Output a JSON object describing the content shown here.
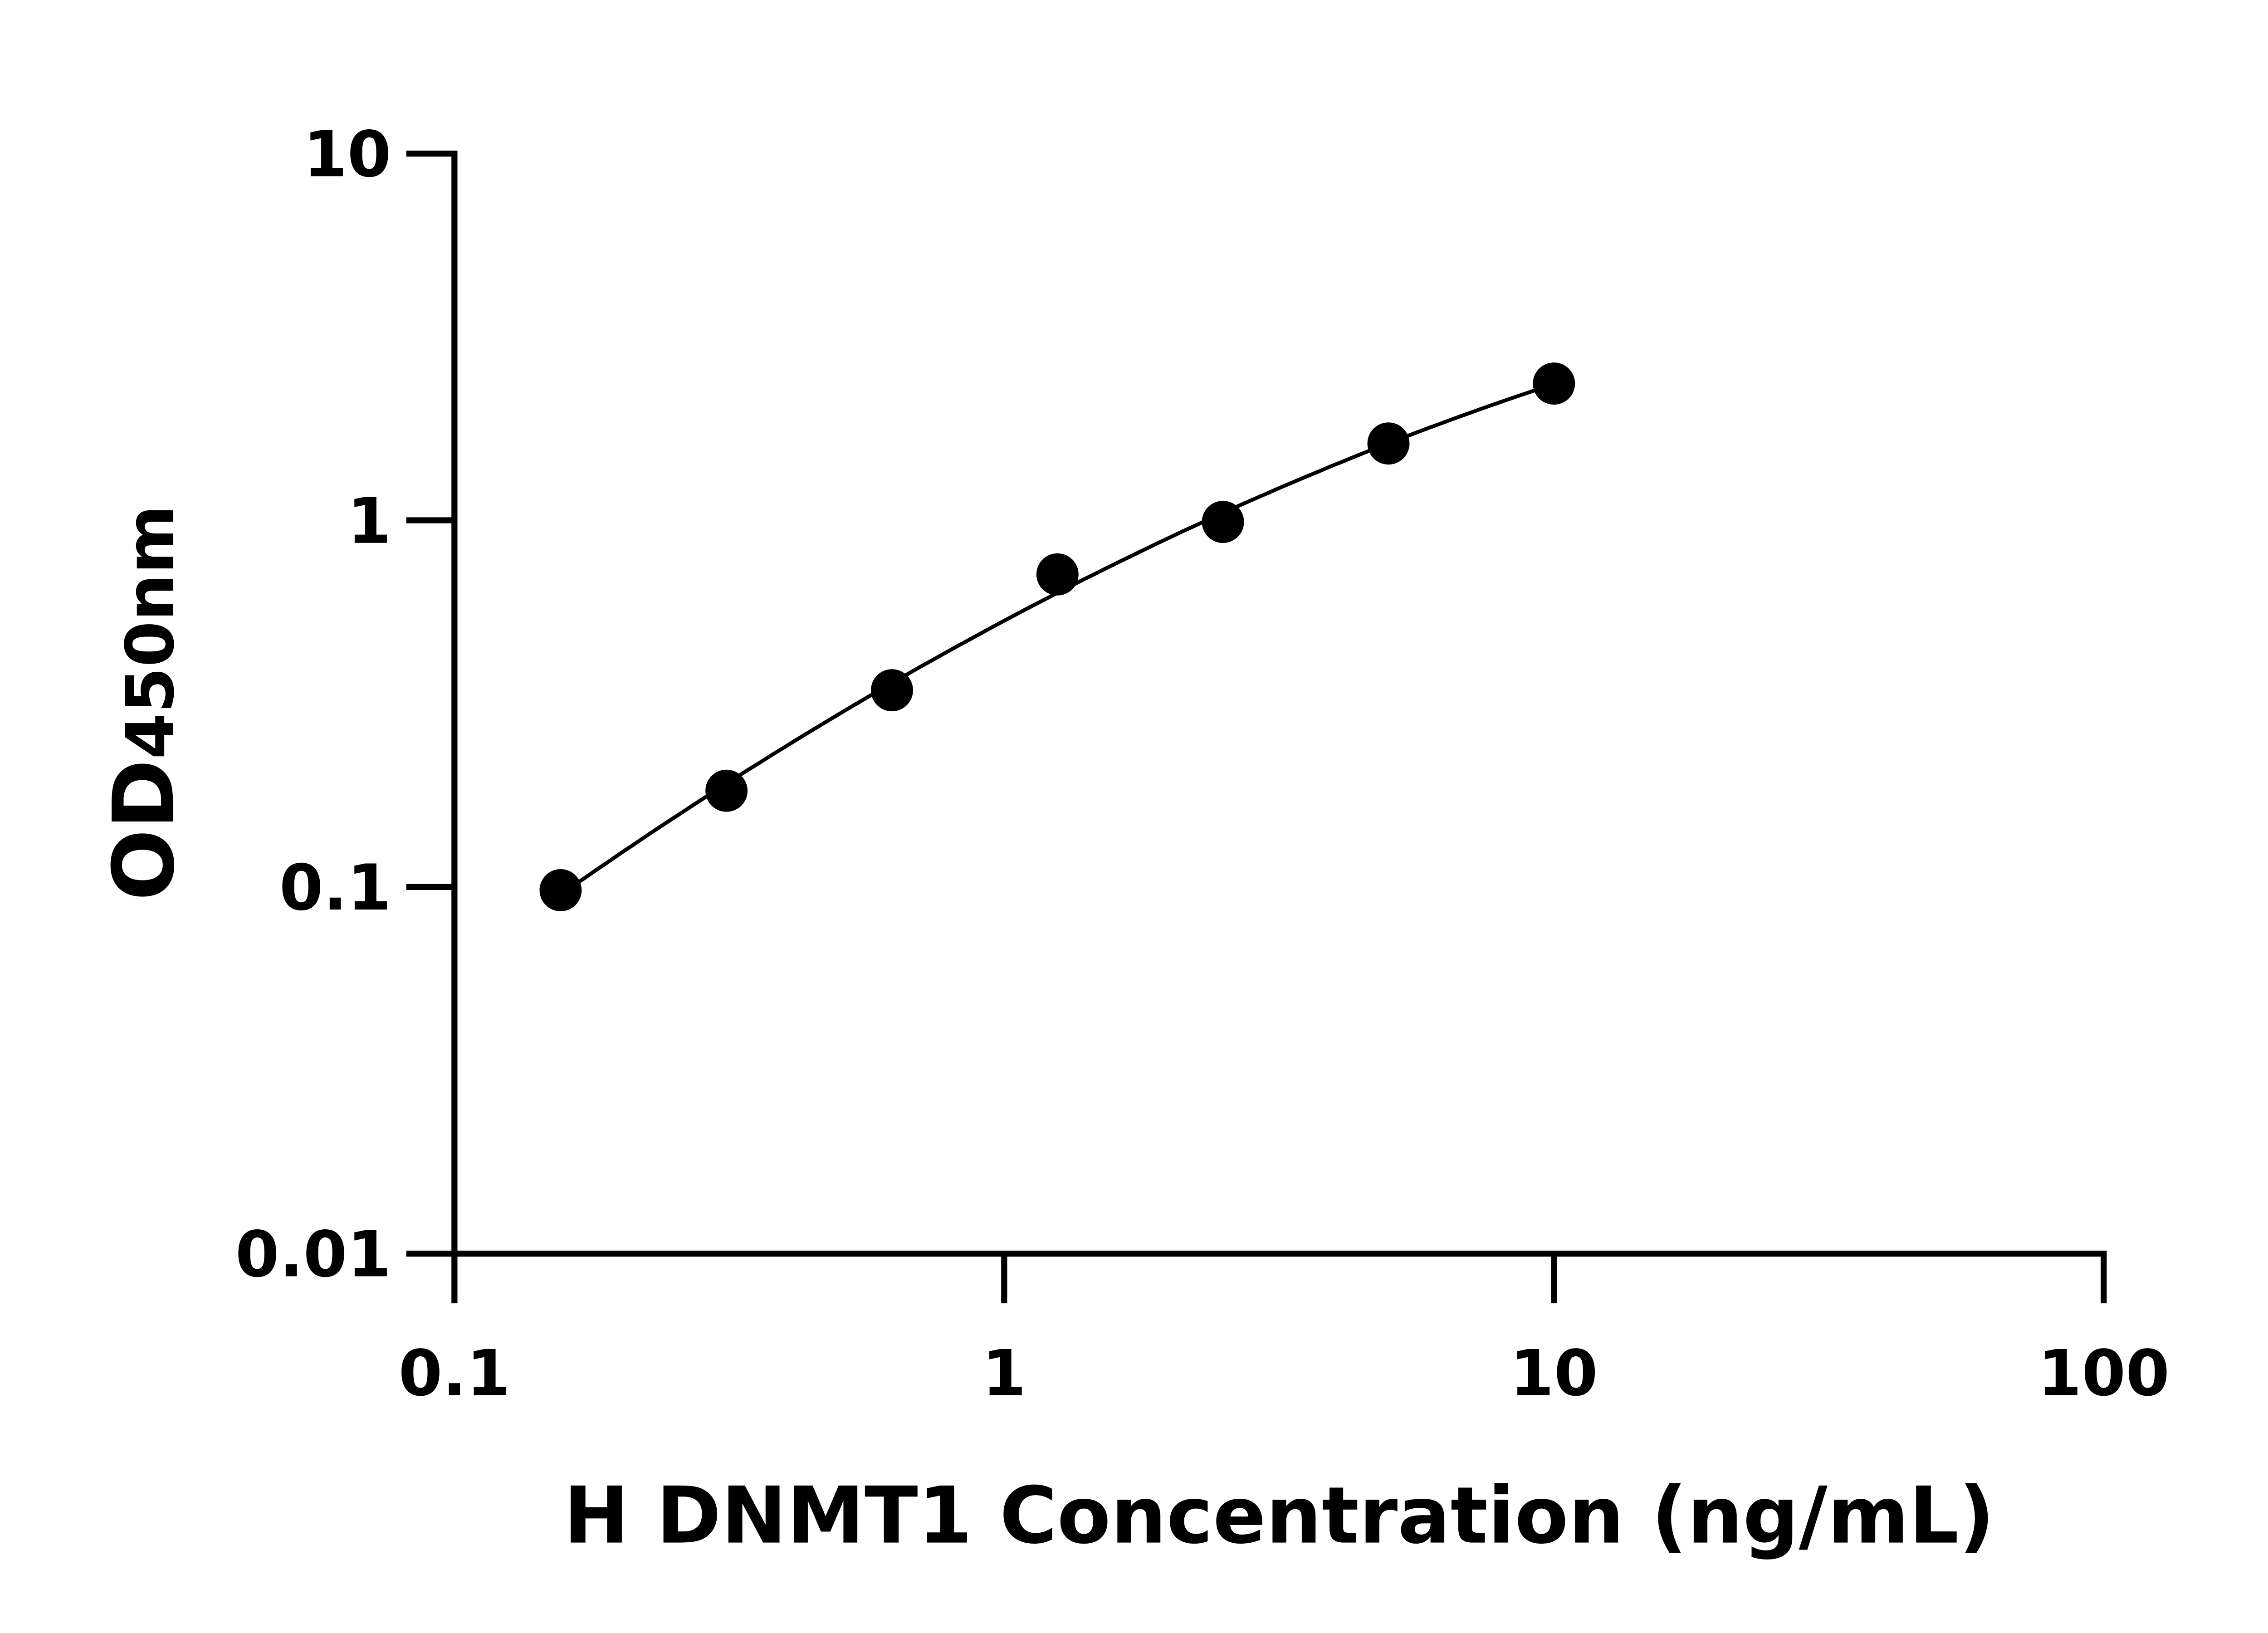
{
  "chart_data": {
    "type": "scatter",
    "title": "",
    "xlabel": "H DNMT1 Concentration (ng/mL)",
    "ylabel_main": "OD",
    "ylabel_sub": "450nm",
    "x_scale": "log",
    "y_scale": "log",
    "xlim": [
      0.1,
      100
    ],
    "ylim": [
      0.01,
      10
    ],
    "x_ticks": [
      0.1,
      1,
      10,
      100
    ],
    "x_tick_labels": [
      "0.1",
      "1",
      "10",
      "100"
    ],
    "y_ticks": [
      0.01,
      0.1,
      1,
      10
    ],
    "y_tick_labels": [
      "0.01",
      "0.1",
      "1",
      "10"
    ],
    "grid": false,
    "legend": "none",
    "fit_curve": true,
    "color": "#000000",
    "series": [
      {
        "x": [
          0.156,
          0.3125,
          0.625,
          1.25,
          2.5,
          5,
          10
        ],
        "y": [
          0.098,
          0.183,
          0.344,
          0.712,
          0.99,
          1.62,
          2.36
        ]
      }
    ]
  }
}
